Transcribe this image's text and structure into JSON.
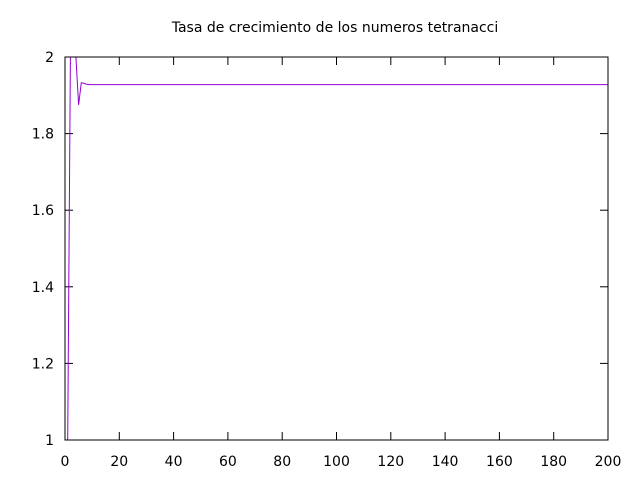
{
  "chart_data": {
    "type": "line",
    "title": "Tasa de crecimiento de los numeros tetranacci",
    "xlabel": "",
    "ylabel": "",
    "xlim": [
      0,
      200
    ],
    "ylim": [
      1,
      2
    ],
    "x_ticks": [
      0,
      20,
      40,
      60,
      80,
      100,
      120,
      140,
      160,
      180,
      200
    ],
    "y_ticks": [
      1,
      1.2,
      1.4,
      1.6,
      1.8,
      2
    ],
    "x_tick_labels": [
      "0",
      "20",
      "40",
      "60",
      "80",
      "100",
      "120",
      "140",
      "160",
      "180",
      "200"
    ],
    "y_tick_labels": [
      "1",
      "1.2",
      "1.4",
      "1.6",
      "1.8",
      "2"
    ],
    "grid": false,
    "line_color": "#9400d3",
    "series": [
      {
        "x": [
          1,
          2,
          3,
          4,
          5,
          6,
          7,
          8,
          9,
          10,
          11,
          12,
          13,
          14,
          15,
          16,
          200
        ],
        "y": [
          1,
          2,
          2,
          2,
          1.875,
          1.933,
          1.931,
          1.929,
          1.928,
          1.928,
          1.928,
          1.928,
          1.928,
          1.928,
          1.928,
          1.928,
          1.928
        ]
      }
    ]
  }
}
